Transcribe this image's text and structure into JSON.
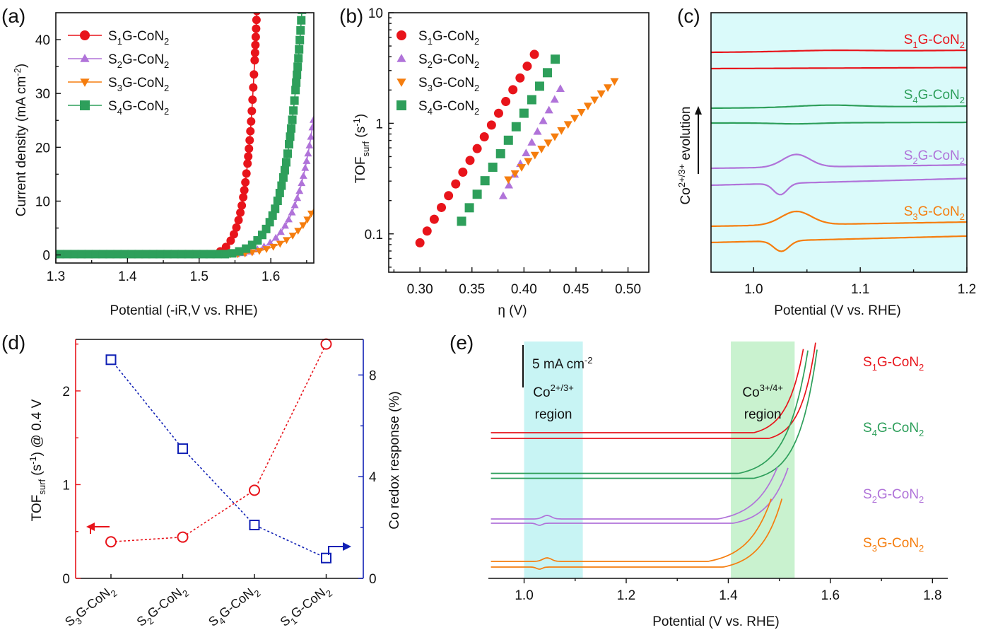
{
  "colors": {
    "S1": "#e8141b",
    "S2": "#b073d9",
    "S3": "#f57d0e",
    "S4": "#2e9f5b",
    "blue": "#1020b5",
    "cyan": "#c8f4f4",
    "green": "#c9f2cf"
  },
  "samples": {
    "S1": {
      "a": "S",
      "sub": "1",
      "b": "G-CoN",
      "sub2": "2"
    },
    "S2": {
      "a": "S",
      "sub": "2",
      "b": "G-CoN",
      "sub2": "2"
    },
    "S3": {
      "a": "S",
      "sub": "3",
      "b": "G-CoN",
      "sub2": "2"
    },
    "S4": {
      "a": "S",
      "sub": "4",
      "b": "G-CoN",
      "sub2": "2"
    }
  },
  "chart_data": [
    {
      "panel": "(a)",
      "type": "line",
      "xlabel": "Potential (-iR,V vs. RHE)",
      "ylabel": "Current density (mA cm-2)",
      "xlim": [
        1.3,
        1.66
      ],
      "ylim": [
        -1.5,
        45
      ],
      "xticks": [
        "1.3",
        "1.4",
        "1.5",
        "1.6"
      ],
      "yticks": [
        "0",
        "10",
        "20",
        "30",
        "40"
      ],
      "legend": "top-left",
      "series": [
        {
          "key": "S1",
          "marker": "circle",
          "onset": 1.52,
          "k": 0.0134,
          "xmax": 1.64
        },
        {
          "key": "S2",
          "marker": "triangle-up",
          "onset": 1.555,
          "k": 0.0266,
          "xmax": 1.66
        },
        {
          "key": "S3",
          "marker": "triangle-down",
          "onset": 1.555,
          "k": 0.0365,
          "xmax": 1.66
        },
        {
          "key": "S4",
          "marker": "square",
          "onset": 1.54,
          "k": 0.0229,
          "xmax": 1.66
        }
      ]
    },
    {
      "panel": "(b)",
      "type": "scatter",
      "xlabel": "η (V)",
      "ylabel": "TOFsurf (s-1)",
      "xlim": [
        0.27,
        0.52
      ],
      "ylim": [
        0.045,
        10
      ],
      "yscale": "log",
      "xticks": [
        "0.30",
        "0.35",
        "0.40",
        "0.45",
        "0.50"
      ],
      "yticks": [
        "0.1",
        "1",
        "10"
      ],
      "legend": "top-left",
      "series": [
        {
          "key": "S1",
          "marker": "circle",
          "x0": 0.3,
          "x1": 0.41,
          "y0": 0.083,
          "y1": 4.2,
          "n": 17
        },
        {
          "key": "S2",
          "marker": "triangle-up",
          "x0": 0.38,
          "x1": 0.435,
          "y0": 0.22,
          "y1": 2.05,
          "n": 11
        },
        {
          "key": "S3",
          "marker": "triangle-down",
          "x0": 0.385,
          "x1": 0.487,
          "y0": 0.31,
          "y1": 2.4,
          "n": 17
        },
        {
          "key": "S4",
          "marker": "square",
          "x0": 0.34,
          "x1": 0.43,
          "y0": 0.13,
          "y1": 3.8,
          "n": 13
        }
      ]
    },
    {
      "panel": "(c)",
      "type": "line",
      "xlabel": "Potential (V vs. RHE)",
      "ylabel": "Co2+/3+ evolution",
      "xlim": [
        0.96,
        1.2
      ],
      "xticks": [
        "1.0",
        "1.1",
        "1.2"
      ],
      "series": [
        "S1",
        "S4",
        "S2",
        "S3"
      ]
    },
    {
      "panel": "(d)",
      "type": "line",
      "categories": [
        "S3G-CoN2",
        "S2G-CoN2",
        "S4G-CoN2",
        "S1G-CoN2"
      ],
      "ylabel_left": "TOFsurf (s-1) @ 0.4 V",
      "ylabel_right": "Co redox response (%)",
      "ylim_left": [
        0,
        2.55
      ],
      "ylim_right": [
        0,
        9.4
      ],
      "yticks_left": [
        "0",
        "1",
        "2"
      ],
      "yticks_right": [
        "0",
        "4",
        "8"
      ],
      "series": [
        {
          "name": "TOFsurf",
          "axis": "left",
          "values": [
            0.39,
            0.44,
            0.94,
            2.5
          ]
        },
        {
          "name": "Co redox response",
          "axis": "right",
          "values": [
            8.6,
            5.1,
            2.1,
            0.8
          ]
        }
      ]
    },
    {
      "panel": "(e)",
      "type": "line",
      "xlabel": "Potential (V vs. RHE)",
      "xlim": [
        0.93,
        1.83
      ],
      "xticks": [
        "1.0",
        "1.2",
        "1.4",
        "1.6",
        "1.8"
      ],
      "scalebar": "5 mA cm-2",
      "regions": [
        {
          "x0": 1.0,
          "x1": 1.115,
          "label_main": "Co",
          "label_sup": "2+/3+",
          "label2": "region"
        },
        {
          "x0": 1.405,
          "x1": 1.53,
          "label_main": "Co",
          "label_sup": "3+/4+",
          "label2": "region"
        }
      ],
      "series": [
        "S1",
        "S4",
        "S2",
        "S3"
      ]
    }
  ]
}
